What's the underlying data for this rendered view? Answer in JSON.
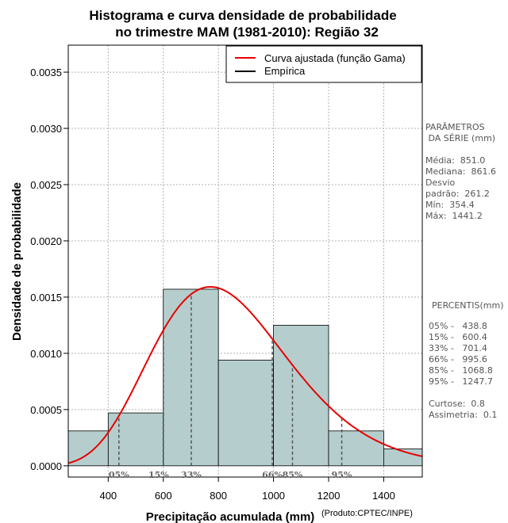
{
  "chart_data": {
    "type": "histogram",
    "title_lines": [
      "Histograma e curva densidade de probabilidade",
      "no trimestre MAM (1981-2010): Região 32"
    ],
    "xlabel": "Precipitação acumulada (mm)",
    "ylabel": "Densidade de probabilidade",
    "credit": "(Produto:CPTEC/INPE)",
    "xlim": [
      255,
      1540
    ],
    "ylim": [
      -0.0001,
      0.00374
    ],
    "x_ticks": [
      400,
      600,
      800,
      1000,
      1200,
      1400
    ],
    "x_tick_labels": [
      "400",
      "600",
      "800",
      "1000",
      "1200",
      "1400"
    ],
    "y_ticks": [
      0,
      0.0005,
      0.001,
      0.0015,
      0.002,
      0.0025,
      0.003,
      0.0035
    ],
    "y_tick_labels": [
      "0.0000",
      "0.0005",
      "0.0010",
      "0.0015",
      "0.0020",
      "0.0025",
      "0.0030",
      "0.0035"
    ],
    "grid": true,
    "bins": [
      {
        "x0": 200,
        "x1": 400,
        "density": 0.00031
      },
      {
        "x0": 400,
        "x1": 600,
        "density": 0.00047
      },
      {
        "x0": 600,
        "x1": 800,
        "density": 0.00157
      },
      {
        "x0": 800,
        "x1": 1000,
        "density": 0.00094
      },
      {
        "x0": 1000,
        "x1": 1200,
        "density": 0.00125
      },
      {
        "x0": 1200,
        "x1": 1400,
        "density": 0.00031
      },
      {
        "x0": 1400,
        "x1": 1600,
        "density": 0.00015
      }
    ],
    "gamma_fit": {
      "mean": 851.0,
      "sd": 261.2
    },
    "percentiles": [
      {
        "label": "05%",
        "value": 438.8
      },
      {
        "label": "15%",
        "value": 600.4
      },
      {
        "label": "33%",
        "value": 701.4
      },
      {
        "label": "66%",
        "value": 995.6
      },
      {
        "label": "85%",
        "value": 1068.8
      },
      {
        "label": "95%",
        "value": 1247.7
      }
    ],
    "legend": {
      "position": "top-right",
      "entries": [
        {
          "label": "Curva ajustada (função Gama)",
          "color": "#e60000"
        },
        {
          "label": "Empírica",
          "color": "#000000"
        }
      ]
    },
    "colors": {
      "bar_fill": "#b5cecd",
      "curve": "#e60000",
      "grid": "#b0b0b0",
      "percentile_line": "#555555"
    }
  },
  "side_panel": {
    "parametros_title_1": "PARÂMETROS",
    "parametros_title_2": " DA SÉRIE (mm)",
    "media": "Média:  851.0",
    "mediana": "Mediana:  861.6",
    "desvio_1": "Desvio",
    "desvio_2": "padrão:  261.2",
    "min": "Mín:  354.4",
    "max": "Máx:  1441.2",
    "percentis_title": "PERCENTIS(mm)",
    "p05": "05% -   438.8",
    "p15": "15% -   600.4",
    "p33": "33% -   701.4",
    "p66": "66% -   995.6",
    "p85": "85% -   1068.8",
    "p95": "95% -   1247.7",
    "curtose": "Curtose:  0.8",
    "assimetria": "Assimetria:  0.1"
  }
}
